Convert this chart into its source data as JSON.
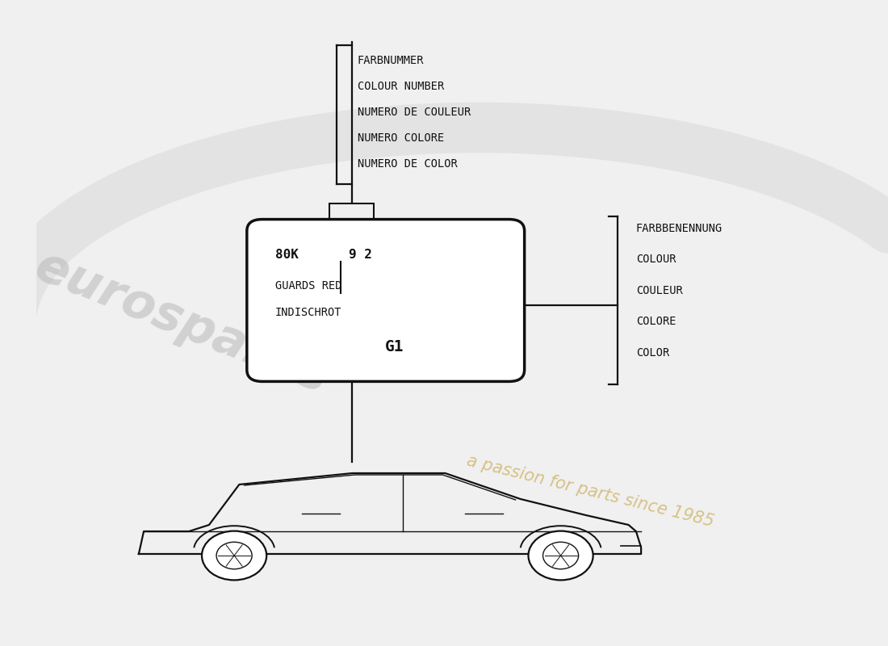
{
  "bg_color": "#f0f0f0",
  "line_color": "#111111",
  "text_color": "#111111",
  "top_label_lines": [
    "FARBNUMMER",
    "COLOUR NUMBER",
    "NUMERO DE COULEUR",
    "NUMERO COLORE",
    "NUMERO DE COLOR"
  ],
  "right_label_lines": [
    "FARBBENENNUNG",
    "COLOUR",
    "COULEUR",
    "COLORE",
    "COLOR"
  ],
  "box_line1a": "80K",
  "box_line1b": "9 2",
  "box_line2": "GUARDS RED",
  "box_line3": "INDISCHROT",
  "box_line4": "G1"
}
